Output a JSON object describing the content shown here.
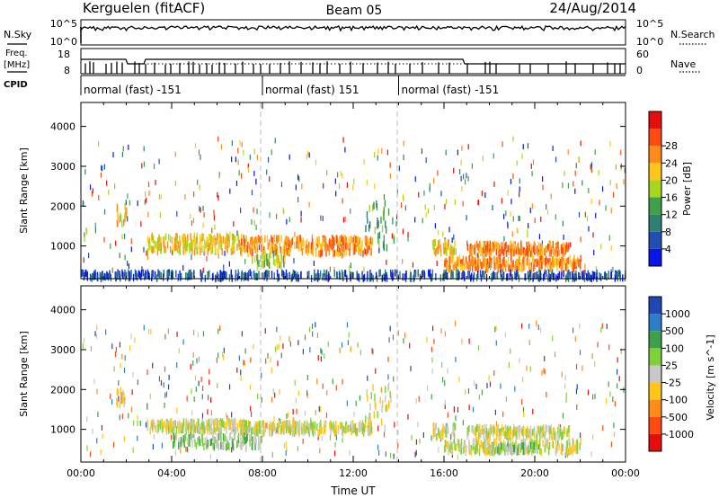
{
  "header": {
    "station": "Kerguelen (fitACF)",
    "beam": "Beam 05",
    "date": "24/Aug/2014"
  },
  "strip_labels": {
    "nsky": "N.Sky",
    "nsearch": "N.Search",
    "freq_top": "Freq.",
    "freq_unit": "[MHz]",
    "nave": "Nave",
    "cpid": "CPID"
  },
  "strip_ticks": {
    "noise_left_top": "10^5",
    "noise_left_bottom": "10^0",
    "noise_right_top": "10^5",
    "noise_right_bottom": "10^0",
    "freq_left_top": "18",
    "freq_left_bottom": "8",
    "nave_right_top": "60",
    "nave_right_bottom": "0"
  },
  "cpid_segments": [
    {
      "label": "normal (fast) -151",
      "start_hour": 0
    },
    {
      "label": "normal (fast) 151",
      "start_hour": 8
    },
    {
      "label": "normal (fast) -151",
      "start_hour": 14
    }
  ],
  "colorbars": {
    "power": {
      "label": "Power [dB]",
      "ticks": [
        "4",
        "8",
        "12",
        "16",
        "20",
        "24",
        "28"
      ],
      "colors": [
        "#0a16e6",
        "#1f4fb3",
        "#2f7f73",
        "#3fa04a",
        "#a8d51e",
        "#ffc51a",
        "#ff8c1a",
        "#ff4a12",
        "#e60d0d"
      ]
    },
    "velocity": {
      "label": "Velocity [m s^-1]",
      "ticks": [
        "1000",
        "500",
        "100",
        "25",
        "-25",
        "-100",
        "-500",
        "-1000"
      ],
      "colors": [
        "#2147b4",
        "#2d7ec8",
        "#3fa04a",
        "#7fd13a",
        "#c8c8c8",
        "#ffc51a",
        "#ff8c1a",
        "#ff4a12",
        "#e60d0d"
      ]
    }
  },
  "chart_data": [
    {
      "type": "heatmap",
      "name": "power",
      "ylabel": "Slant Range [km]",
      "xlim": [
        0,
        24
      ],
      "ylim": [
        180,
        4600
      ],
      "yticks": [
        "1000",
        "2000",
        "3000",
        "4000"
      ],
      "ytick_values": [
        1000,
        2000,
        3000,
        4000
      ],
      "echo_regions": [
        {
          "t": [
            1.5,
            2.0
          ],
          "r": [
            1550,
            2000
          ],
          "level": 5,
          "density": 0.55
        },
        {
          "t": [
            2.9,
            7.2
          ],
          "r": [
            850,
            1250
          ],
          "level": 5,
          "density": 0.8
        },
        {
          "t": [
            7.0,
            12.8
          ],
          "r": [
            800,
            1200
          ],
          "level": 6,
          "density": 0.8
        },
        {
          "t": [
            12.5,
            13.8
          ],
          "r": [
            950,
            2100
          ],
          "level": 3,
          "density": 0.45
        },
        {
          "t": [
            7.5,
            9.0
          ],
          "r": [
            500,
            800
          ],
          "level": 4,
          "density": 0.5
        },
        {
          "t": [
            15.5,
            16.5
          ],
          "r": [
            800,
            1100
          ],
          "level": 5,
          "density": 0.7
        },
        {
          "t": [
            17.0,
            21.5
          ],
          "r": [
            800,
            1050
          ],
          "level": 6,
          "density": 0.8
        },
        {
          "t": [
            16.0,
            22.0
          ],
          "r": [
            420,
            700
          ],
          "level": 6,
          "density": 0.75
        },
        {
          "t": [
            0.0,
            24.0
          ],
          "r": [
            180,
            330
          ],
          "level": 1,
          "density": 0.35
        }
      ]
    },
    {
      "type": "heatmap",
      "name": "velocity",
      "ylabel": "Slant Range [km]",
      "xlabel": "Time UT",
      "xlim": [
        0,
        24
      ],
      "ylim": [
        180,
        4600
      ],
      "yticks": [
        "1000",
        "2000",
        "3000",
        "4000"
      ],
      "ytick_values": [
        1000,
        2000,
        3000,
        4000
      ],
      "xticks": [
        "00:00",
        "04:00",
        "08:00",
        "12:00",
        "16:00",
        "20:00",
        "00:00"
      ],
      "xtick_values": [
        0,
        4,
        8,
        12,
        16,
        20,
        24
      ],
      "echo_regions": [
        {
          "t": [
            1.5,
            2.0
          ],
          "r": [
            1550,
            2000
          ],
          "level": 5,
          "density": 0.55
        },
        {
          "t": [
            2.9,
            7.2
          ],
          "r": [
            950,
            1200
          ],
          "level": 4,
          "density": 0.8
        },
        {
          "t": [
            7.0,
            12.8
          ],
          "r": [
            900,
            1150
          ],
          "level": 4,
          "density": 0.8
        },
        {
          "t": [
            12.5,
            13.8
          ],
          "r": [
            950,
            2100
          ],
          "level": 4,
          "density": 0.4
        },
        {
          "t": [
            4.0,
            8.0
          ],
          "r": [
            550,
            850
          ],
          "level": 3,
          "density": 0.55
        },
        {
          "t": [
            15.5,
            16.5
          ],
          "r": [
            800,
            1100
          ],
          "level": 4,
          "density": 0.7
        },
        {
          "t": [
            17.0,
            21.5
          ],
          "r": [
            800,
            1050
          ],
          "level": 4,
          "density": 0.75
        },
        {
          "t": [
            16.0,
            22.0
          ],
          "r": [
            420,
            700
          ],
          "level": 4,
          "density": 0.7
        },
        {
          "t": [
            18.0,
            20.0
          ],
          "r": [
            430,
            600
          ],
          "level": 3,
          "density": 0.5
        }
      ]
    }
  ]
}
